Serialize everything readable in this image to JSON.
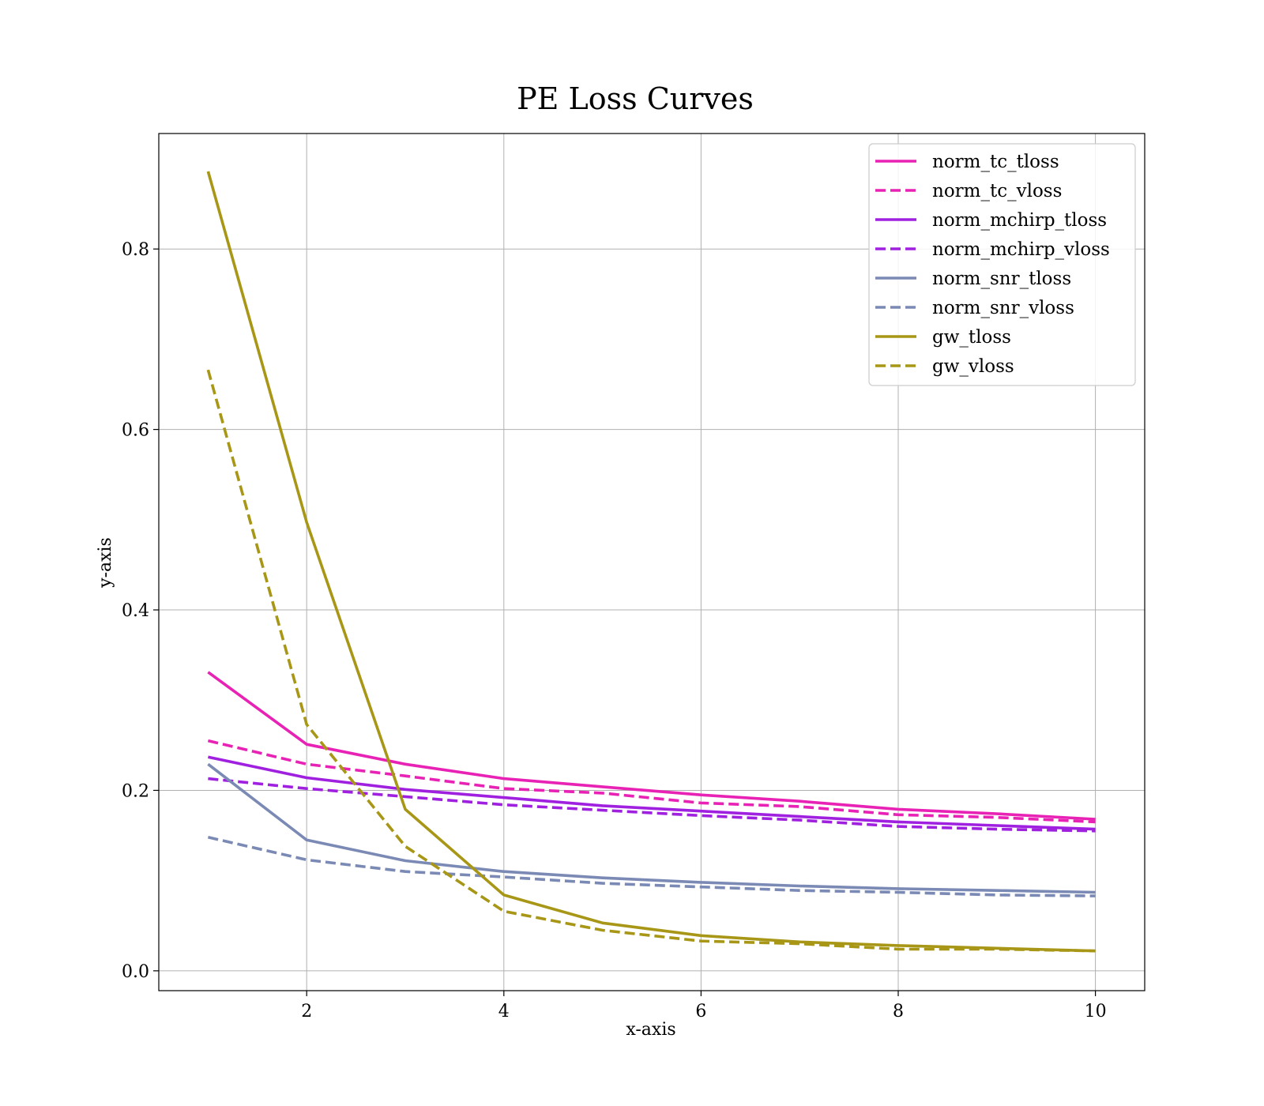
{
  "chart_data": {
    "type": "line",
    "title": "PE Loss Curves",
    "xlabel": "x-axis",
    "ylabel": "y-axis",
    "xlim": [
      0.5,
      10.5
    ],
    "ylim": [
      -0.022,
      0.928
    ],
    "xticks": [
      2,
      4,
      6,
      8,
      10
    ],
    "yticks": [
      0.0,
      0.2,
      0.4,
      0.6,
      0.8
    ],
    "xtick_labels": [
      "2",
      "4",
      "6",
      "8",
      "10"
    ],
    "ytick_labels": [
      "0.0",
      "0.2",
      "0.4",
      "0.6",
      "0.8"
    ],
    "grid": true,
    "legend_position": "top-right",
    "x": [
      1,
      2,
      3,
      4,
      5,
      6,
      7,
      8,
      9,
      10
    ],
    "series": [
      {
        "name": "norm_tc_tloss",
        "color": "#e822b4",
        "style": "solid",
        "values": [
          0.331,
          0.251,
          0.229,
          0.213,
          0.204,
          0.195,
          0.188,
          0.179,
          0.174,
          0.168
        ]
      },
      {
        "name": "norm_tc_vloss",
        "color": "#e822b4",
        "style": "dashed",
        "values": [
          0.255,
          0.229,
          0.216,
          0.202,
          0.197,
          0.186,
          0.182,
          0.173,
          0.17,
          0.165
        ]
      },
      {
        "name": "norm_mchirp_tloss",
        "color": "#a020e0",
        "style": "solid",
        "values": [
          0.237,
          0.214,
          0.201,
          0.192,
          0.183,
          0.177,
          0.171,
          0.165,
          0.161,
          0.157
        ]
      },
      {
        "name": "norm_mchirp_vloss",
        "color": "#a020e0",
        "style": "dashed",
        "values": [
          0.213,
          0.202,
          0.193,
          0.184,
          0.178,
          0.172,
          0.167,
          0.16,
          0.157,
          0.155
        ]
      },
      {
        "name": "norm_snr_tloss",
        "color": "#7b8ab5",
        "style": "solid",
        "values": [
          0.229,
          0.145,
          0.122,
          0.11,
          0.103,
          0.098,
          0.094,
          0.091,
          0.089,
          0.087
        ]
      },
      {
        "name": "norm_snr_vloss",
        "color": "#7b8ab5",
        "style": "dashed",
        "values": [
          0.148,
          0.123,
          0.11,
          0.104,
          0.097,
          0.093,
          0.089,
          0.087,
          0.084,
          0.083
        ]
      },
      {
        "name": "gw_tloss",
        "color": "#a89717",
        "style": "solid",
        "values": [
          0.886,
          0.497,
          0.179,
          0.084,
          0.053,
          0.039,
          0.032,
          0.028,
          0.025,
          0.022
        ]
      },
      {
        "name": "gw_vloss",
        "color": "#a89717",
        "style": "dashed",
        "values": [
          0.666,
          0.273,
          0.138,
          0.066,
          0.045,
          0.033,
          0.03,
          0.024,
          0.024,
          0.022
        ]
      }
    ]
  }
}
